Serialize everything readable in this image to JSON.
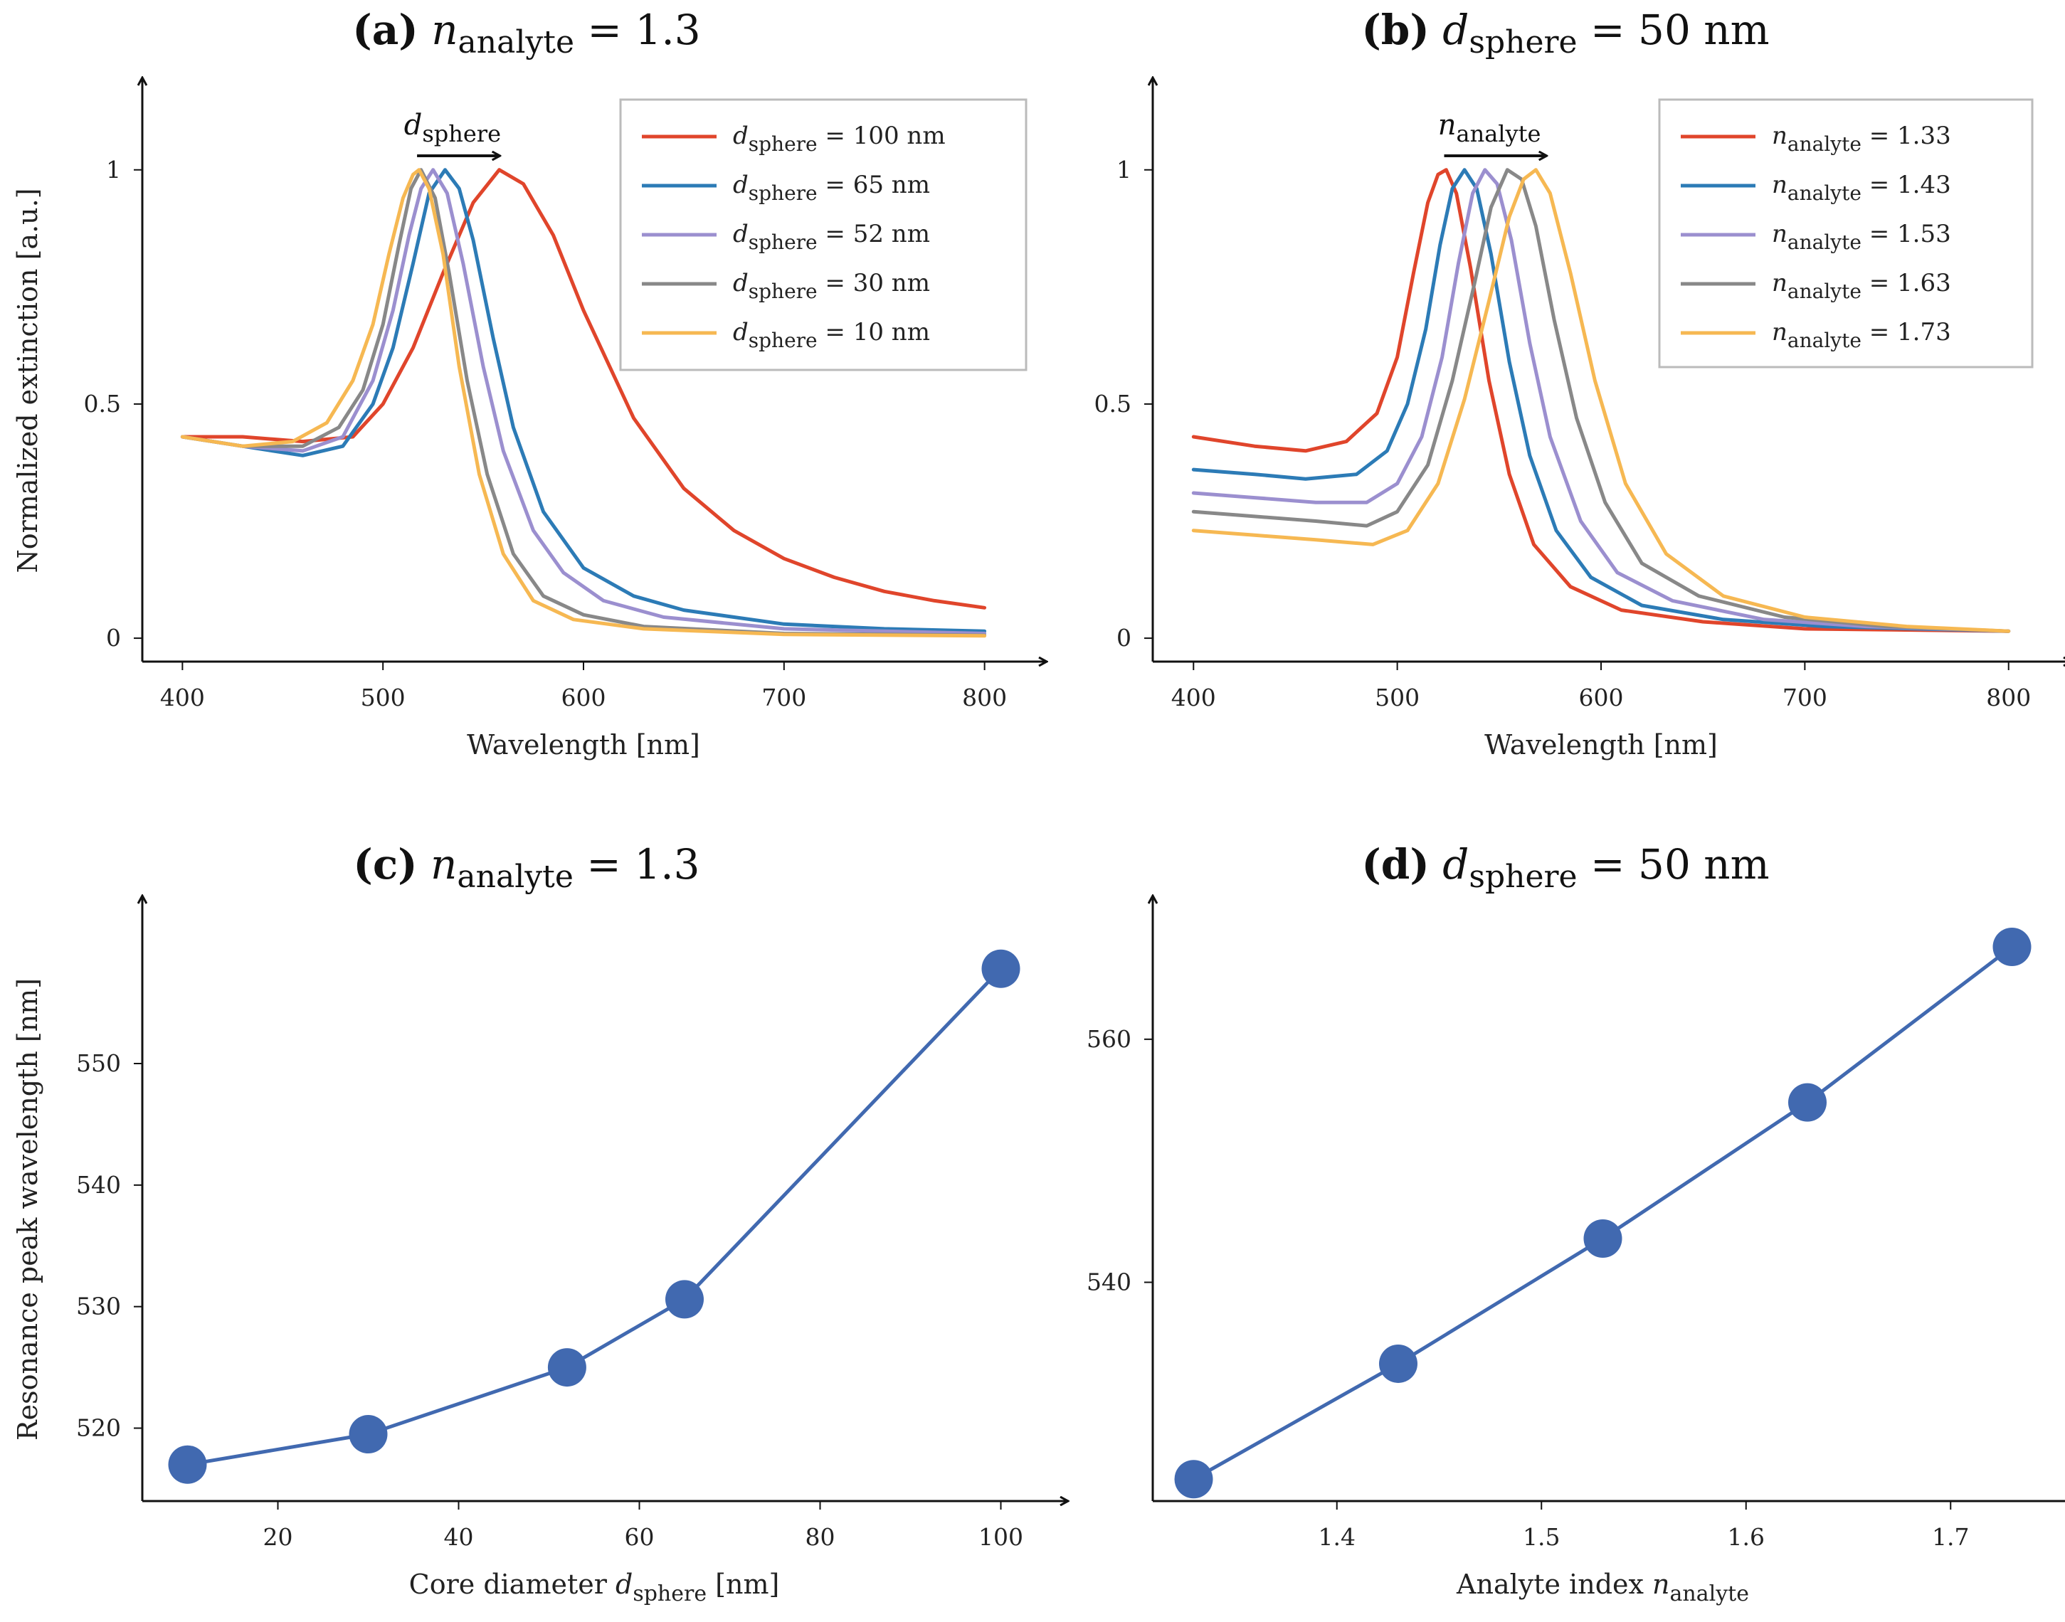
{
  "colors": {
    "axis": "#111111",
    "scatter": "#4169b0",
    "legend_border": "#bbbbbb"
  },
  "chart_data": [
    {
      "panel": "a",
      "type": "line",
      "title": {
        "letter": "(a)",
        "var": "n",
        "sub": "analyte",
        "rest": " = 1.3"
      },
      "xlabel": "Wavelength [nm]",
      "ylabel": "Normalized extinction [a.u.]",
      "xlim": [
        380,
        820
      ],
      "ylim": [
        -0.05,
        1.15
      ],
      "xticks": [
        400,
        500,
        600,
        700,
        800
      ],
      "yticks": [
        0,
        0.5,
        1
      ],
      "ytick_labels": [
        "0",
        "0.5",
        "1"
      ],
      "legend_position": "top-right",
      "annotation": {
        "var": "d",
        "sub": "sphere",
        "arrow_from": [
          517,
          1.03
        ],
        "arrow_to": [
          558,
          1.03
        ]
      },
      "series": [
        {
          "var": "d",
          "sub": "sphere",
          "value": "100 nm",
          "color": "#e0452b",
          "x": [
            400,
            430,
            460,
            485,
            500,
            515,
            530,
            545,
            558,
            570,
            585,
            600,
            625,
            650,
            675,
            700,
            725,
            750,
            775,
            800
          ],
          "y": [
            0.43,
            0.43,
            0.42,
            0.43,
            0.5,
            0.62,
            0.78,
            0.93,
            1.0,
            0.97,
            0.86,
            0.7,
            0.47,
            0.32,
            0.23,
            0.17,
            0.13,
            0.1,
            0.08,
            0.065
          ]
        },
        {
          "var": "d",
          "sub": "sphere",
          "value": "65 nm",
          "color": "#2c7bb6",
          "x": [
            400,
            430,
            460,
            480,
            495,
            505,
            515,
            523,
            531,
            538,
            545,
            555,
            565,
            580,
            600,
            625,
            650,
            700,
            750,
            800
          ],
          "y": [
            0.43,
            0.41,
            0.39,
            0.41,
            0.5,
            0.62,
            0.8,
            0.95,
            1.0,
            0.96,
            0.85,
            0.64,
            0.45,
            0.27,
            0.15,
            0.09,
            0.06,
            0.03,
            0.02,
            0.015
          ]
        },
        {
          "var": "d",
          "sub": "sphere",
          "value": "52 nm",
          "color": "#9b8fcf",
          "x": [
            400,
            430,
            460,
            480,
            495,
            505,
            513,
            519,
            525,
            532,
            540,
            550,
            560,
            575,
            590,
            610,
            640,
            700,
            750,
            800
          ],
          "y": [
            0.43,
            0.41,
            0.4,
            0.43,
            0.55,
            0.7,
            0.86,
            0.96,
            1.0,
            0.95,
            0.8,
            0.58,
            0.4,
            0.23,
            0.14,
            0.08,
            0.045,
            0.02,
            0.015,
            0.01
          ]
        },
        {
          "var": "d",
          "sub": "sphere",
          "value": "30 nm",
          "color": "#888888",
          "x": [
            400,
            430,
            460,
            478,
            490,
            500,
            508,
            514,
            519,
            526,
            533,
            542,
            552,
            565,
            580,
            600,
            630,
            700,
            750,
            800
          ],
          "y": [
            0.43,
            0.41,
            0.41,
            0.45,
            0.53,
            0.67,
            0.84,
            0.96,
            1.0,
            0.94,
            0.78,
            0.55,
            0.35,
            0.18,
            0.09,
            0.05,
            0.025,
            0.01,
            0.008,
            0.006
          ]
        },
        {
          "var": "d",
          "sub": "sphere",
          "value": "10 nm",
          "color": "#f6b852",
          "x": [
            400,
            430,
            455,
            472,
            485,
            495,
            503,
            510,
            515,
            518,
            523,
            530,
            538,
            548,
            560,
            575,
            595,
            630,
            700,
            800
          ],
          "y": [
            0.43,
            0.41,
            0.42,
            0.46,
            0.55,
            0.67,
            0.82,
            0.94,
            0.99,
            1.0,
            0.96,
            0.82,
            0.58,
            0.35,
            0.18,
            0.08,
            0.04,
            0.02,
            0.008,
            0.005
          ]
        }
      ]
    },
    {
      "panel": "b",
      "type": "line",
      "title": {
        "letter": "(b)",
        "var": "d",
        "sub": "sphere",
        "rest": " = 50 nm"
      },
      "xlabel": "Wavelength [nm]",
      "ylabel": "",
      "xlim": [
        380,
        820
      ],
      "ylim": [
        -0.05,
        1.15
      ],
      "xticks": [
        400,
        500,
        600,
        700,
        800
      ],
      "yticks": [
        0,
        0.5,
        1
      ],
      "ytick_labels": [
        "0",
        "0.5",
        "1"
      ],
      "legend_position": "top-right",
      "annotation": {
        "var": "n",
        "sub": "analyte",
        "arrow_from": [
          523,
          1.03
        ],
        "arrow_to": [
          573,
          1.03
        ]
      },
      "series": [
        {
          "var": "n",
          "sub": "analyte",
          "value": "1.33",
          "color": "#e0452b",
          "x": [
            400,
            430,
            455,
            475,
            490,
            500,
            508,
            515,
            520,
            524,
            529,
            536,
            545,
            555,
            567,
            585,
            610,
            650,
            700,
            800
          ],
          "y": [
            0.43,
            0.41,
            0.4,
            0.42,
            0.48,
            0.6,
            0.78,
            0.93,
            0.99,
            1.0,
            0.95,
            0.79,
            0.55,
            0.35,
            0.2,
            0.11,
            0.06,
            0.035,
            0.02,
            0.015
          ]
        },
        {
          "var": "n",
          "sub": "analyte",
          "value": "1.43",
          "color": "#2c7bb6",
          "x": [
            400,
            430,
            455,
            480,
            495,
            505,
            514,
            521,
            527,
            533,
            539,
            546,
            555,
            565,
            578,
            595,
            620,
            660,
            710,
            800
          ],
          "y": [
            0.36,
            0.35,
            0.34,
            0.35,
            0.4,
            0.5,
            0.66,
            0.84,
            0.96,
            1.0,
            0.96,
            0.82,
            0.59,
            0.39,
            0.23,
            0.13,
            0.07,
            0.04,
            0.025,
            0.015
          ]
        },
        {
          "var": "n",
          "sub": "analyte",
          "value": "1.53",
          "color": "#9b8fcf",
          "x": [
            400,
            430,
            460,
            485,
            500,
            512,
            522,
            530,
            537,
            543,
            549,
            556,
            565,
            575,
            590,
            608,
            635,
            680,
            730,
            800
          ],
          "y": [
            0.31,
            0.3,
            0.29,
            0.29,
            0.33,
            0.43,
            0.6,
            0.8,
            0.95,
            1.0,
            0.97,
            0.85,
            0.63,
            0.43,
            0.25,
            0.14,
            0.08,
            0.04,
            0.025,
            0.015
          ]
        },
        {
          "var": "n",
          "sub": "analyte",
          "value": "1.63",
          "color": "#888888",
          "x": [
            400,
            430,
            460,
            485,
            500,
            515,
            527,
            538,
            546,
            554,
            561,
            568,
            577,
            588,
            602,
            620,
            648,
            690,
            740,
            800
          ],
          "y": [
            0.27,
            0.26,
            0.25,
            0.24,
            0.27,
            0.37,
            0.55,
            0.76,
            0.92,
            1.0,
            0.98,
            0.88,
            0.68,
            0.47,
            0.29,
            0.16,
            0.09,
            0.045,
            0.025,
            0.015
          ]
        },
        {
          "var": "n",
          "sub": "analyte",
          "value": "1.73",
          "color": "#f6b852",
          "x": [
            400,
            430,
            460,
            488,
            505,
            520,
            533,
            545,
            555,
            562,
            568,
            575,
            585,
            597,
            612,
            632,
            660,
            700,
            750,
            800
          ],
          "y": [
            0.23,
            0.22,
            0.21,
            0.2,
            0.23,
            0.33,
            0.51,
            0.72,
            0.9,
            0.98,
            1.0,
            0.95,
            0.78,
            0.55,
            0.33,
            0.18,
            0.09,
            0.045,
            0.025,
            0.015
          ]
        }
      ]
    },
    {
      "panel": "c",
      "type": "scatter",
      "title": {
        "letter": "(c)",
        "var": "n",
        "sub": "analyte",
        "rest": " = 1.3"
      },
      "xlabel": {
        "pre": "Core diameter ",
        "var": "d",
        "sub": "sphere",
        "post": " [nm]"
      },
      "ylabel": "Resonance peak wavelength [nm]",
      "xlim": [
        5,
        105
      ],
      "ylim": [
        514,
        562
      ],
      "xticks": [
        20,
        40,
        60,
        80,
        100
      ],
      "yticks": [
        520,
        530,
        540,
        550
      ],
      "x": [
        10,
        30,
        52,
        65,
        100
      ],
      "y": [
        517,
        519.5,
        525,
        530.6,
        557.8
      ],
      "color": "#4169b0"
    },
    {
      "panel": "d",
      "type": "scatter",
      "title": {
        "letter": "(d)",
        "var": "d",
        "sub": "sphere",
        "rest": " = 50 nm"
      },
      "xlabel": {
        "pre": "Analyte index ",
        "var": "n",
        "sub": "analyte",
        "post": ""
      },
      "ylabel": "",
      "xlim": [
        1.31,
        1.75
      ],
      "ylim": [
        522,
        570
      ],
      "xticks": [
        1.4,
        1.5,
        1.6,
        1.7
      ],
      "yticks": [
        540,
        560
      ],
      "x": [
        1.33,
        1.43,
        1.53,
        1.63,
        1.73
      ],
      "y": [
        523.8,
        533.3,
        543.6,
        554.8,
        567.6
      ],
      "color": "#4169b0"
    }
  ]
}
